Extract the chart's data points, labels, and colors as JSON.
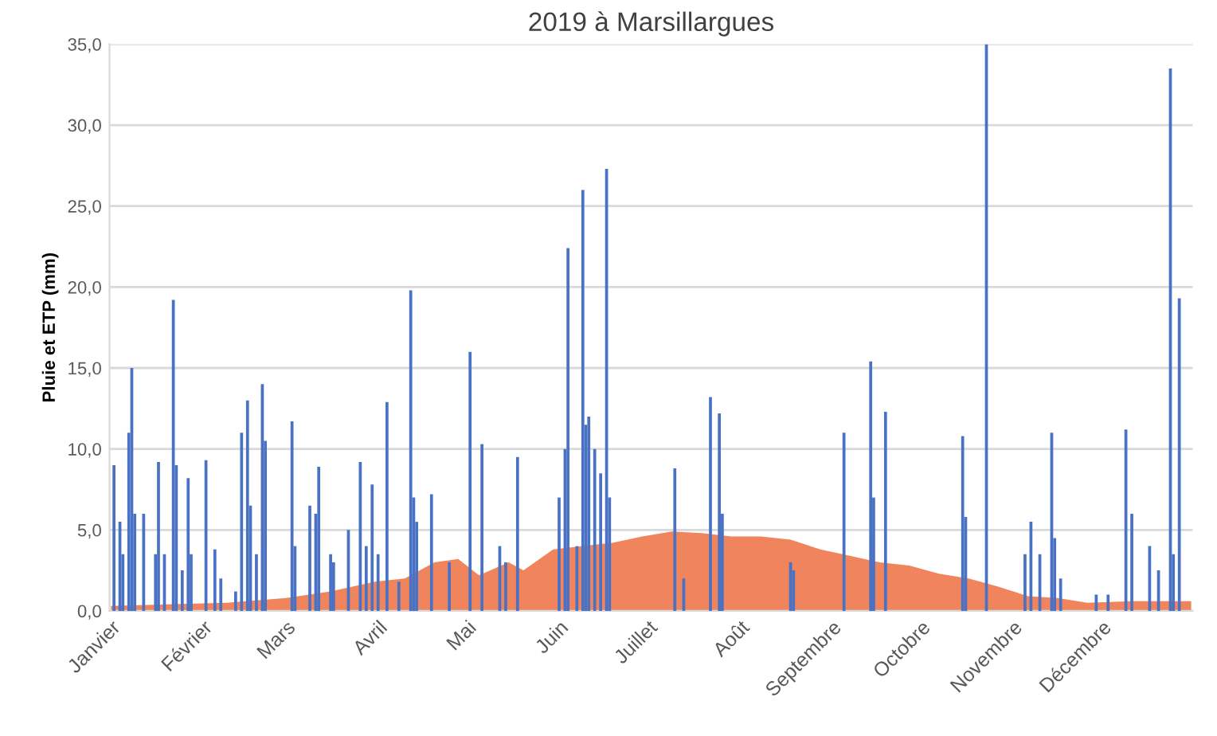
{
  "chart_data": {
    "type": "bar",
    "title": "2019 à Marsillargues",
    "ylabel": "Pluie et ETP (mm)",
    "xlim": [
      "2018-12-31T12:00",
      "2019-12-31T12:00"
    ],
    "xticks": [
      {
        "value": "2019-01-01",
        "label": "Janvier"
      },
      {
        "value": "2019-02-01",
        "label": "Février"
      },
      {
        "value": "2019-03-01",
        "label": "Mars"
      },
      {
        "value": "2019-04-01",
        "label": "Avril"
      },
      {
        "value": "2019-05-01",
        "label": "Mai"
      },
      {
        "value": "2019-06-01",
        "label": "Juin"
      },
      {
        "value": "2019-07-01",
        "label": "Juillet"
      },
      {
        "value": "2019-08-01",
        "label": "Août"
      },
      {
        "value": "2019-09-01",
        "label": "Septembre"
      },
      {
        "value": "2019-10-01",
        "label": "Octobre"
      },
      {
        "value": "2019-11-01",
        "label": "Novembre"
      },
      {
        "value": "2019-12-01",
        "label": "Décembre"
      }
    ],
    "ylim": [
      0,
      35
    ],
    "yticks": [
      {
        "value": 0,
        "label": "0,0"
      },
      {
        "value": 5,
        "label": "5,0"
      },
      {
        "value": 10,
        "label": "10,0"
      },
      {
        "value": 15,
        "label": "15,0"
      },
      {
        "value": 20,
        "label": "20,0"
      },
      {
        "value": 25,
        "label": "25,0"
      },
      {
        "value": 30,
        "label": "30,0"
      },
      {
        "value": 35,
        "label": "35,0"
      }
    ],
    "grid": "y",
    "legend": false,
    "series": [
      {
        "type": "area",
        "color": "#f0845c",
        "x": [
          "2019-01-01",
          "2019-01-20",
          "2019-02-09",
          "2019-03-01",
          "2019-03-16",
          "2019-03-31",
          "2019-04-10",
          "2019-04-20",
          "2019-04-28",
          "2019-05-05",
          "2019-05-15",
          "2019-05-20",
          "2019-05-30",
          "2019-06-09",
          "2019-06-19",
          "2019-06-29",
          "2019-07-09",
          "2019-07-19",
          "2019-07-29",
          "2019-08-08",
          "2019-08-18",
          "2019-08-28",
          "2019-09-07",
          "2019-09-17",
          "2019-09-27",
          "2019-10-07",
          "2019-10-17",
          "2019-10-27",
          "2019-11-06",
          "2019-11-16",
          "2019-11-26",
          "2019-12-11",
          "2019-12-31"
        ],
        "values": [
          0.3,
          0.4,
          0.5,
          0.8,
          1.2,
          1.8,
          2.0,
          3.0,
          3.2,
          2.2,
          3.0,
          2.5,
          3.8,
          4.0,
          4.2,
          4.6,
          4.9,
          4.8,
          4.6,
          4.6,
          4.4,
          3.8,
          3.4,
          3.0,
          2.8,
          2.3,
          2.0,
          1.5,
          0.9,
          0.8,
          0.5,
          0.6,
          0.6
        ]
      },
      {
        "color": "#4a72c4",
        "x": [
          "2019-01-02",
          "2019-01-04",
          "2019-01-05",
          "2019-01-07",
          "2019-01-08",
          "2019-01-09",
          "2019-01-12",
          "2019-01-16",
          "2019-01-17",
          "2019-01-19",
          "2019-01-22",
          "2019-01-23",
          "2019-01-25",
          "2019-01-27",
          "2019-01-28",
          "2019-02-02",
          "2019-02-05",
          "2019-02-07",
          "2019-02-12",
          "2019-02-14",
          "2019-02-16",
          "2019-02-17",
          "2019-02-19",
          "2019-02-21",
          "2019-02-22",
          "2019-03-03",
          "2019-03-04",
          "2019-03-09",
          "2019-03-11",
          "2019-03-12",
          "2019-03-16",
          "2019-03-17",
          "2019-03-22",
          "2019-03-26",
          "2019-03-28",
          "2019-03-30",
          "2019-04-01",
          "2019-04-04",
          "2019-04-08",
          "2019-04-12",
          "2019-04-13",
          "2019-04-14",
          "2019-04-19",
          "2019-04-25",
          "2019-05-02",
          "2019-05-06",
          "2019-05-12",
          "2019-05-14",
          "2019-05-18",
          "2019-06-01",
          "2019-06-03",
          "2019-06-04",
          "2019-06-07",
          "2019-06-09",
          "2019-06-10",
          "2019-06-11",
          "2019-06-13",
          "2019-06-15",
          "2019-06-17",
          "2019-06-18",
          "2019-07-10",
          "2019-07-13",
          "2019-07-22",
          "2019-07-25",
          "2019-07-26",
          "2019-08-18",
          "2019-08-19",
          "2019-09-05",
          "2019-09-14",
          "2019-09-15",
          "2019-09-19",
          "2019-10-15",
          "2019-10-16",
          "2019-10-23",
          "2019-11-05",
          "2019-11-07",
          "2019-11-10",
          "2019-11-14",
          "2019-11-15",
          "2019-11-17",
          "2019-11-29",
          "2019-12-03",
          "2019-12-09",
          "2019-12-11",
          "2019-12-17",
          "2019-12-20",
          "2019-12-24",
          "2019-12-25",
          "2019-12-27"
        ],
        "values": [
          9.0,
          5.5,
          3.5,
          11.0,
          15.0,
          6.0,
          6.0,
          3.5,
          9.2,
          3.5,
          19.2,
          9.0,
          2.5,
          8.2,
          3.5,
          9.3,
          3.8,
          2.0,
          1.2,
          11.0,
          13.0,
          6.5,
          3.5,
          14.0,
          10.5,
          11.7,
          4.0,
          6.5,
          6.0,
          8.9,
          3.5,
          3.0,
          5.0,
          9.2,
          4.0,
          7.8,
          3.5,
          12.9,
          1.8,
          19.8,
          7.0,
          5.5,
          7.2,
          3.0,
          16.0,
          10.3,
          4.0,
          3.0,
          9.5,
          7.0,
          10.0,
          22.4,
          4.0,
          26.0,
          11.5,
          12.0,
          10.0,
          8.5,
          27.3,
          7.0,
          8.8,
          2.0,
          13.2,
          12.2,
          6.0,
          3.0,
          2.5,
          11.0,
          15.4,
          7.0,
          12.3,
          10.8,
          5.8,
          35.0,
          3.5,
          5.5,
          3.5,
          11.0,
          4.5,
          2.0,
          1.0,
          1.0,
          11.2,
          6.0,
          4.0,
          2.5,
          33.5,
          3.5,
          19.3
        ]
      }
    ]
  }
}
